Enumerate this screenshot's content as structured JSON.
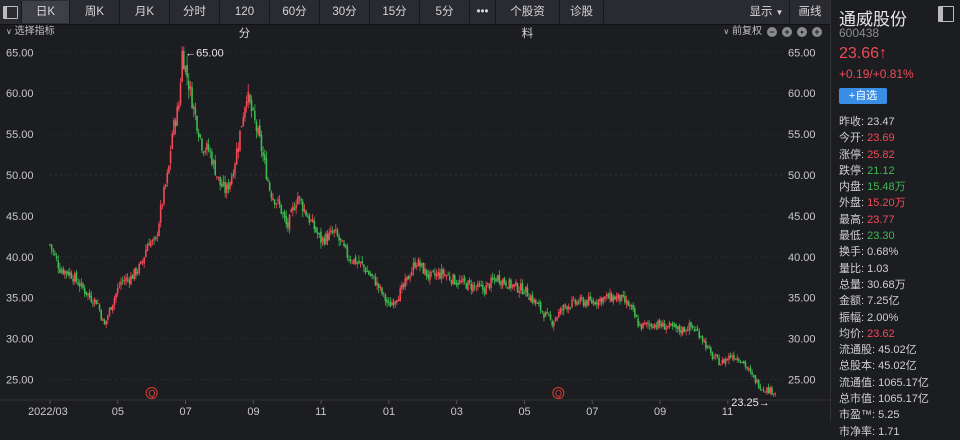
{
  "toolbar": {
    "tabs": [
      "日K",
      "周K",
      "月K",
      "分时",
      "120分",
      "60分",
      "30分",
      "15分",
      "5分"
    ],
    "active_tab": 0,
    "more_label": "•••",
    "profile_label": "个股资料",
    "diagnose_label": "诊股",
    "display_label": "显示",
    "draw_label": "画线"
  },
  "subbar": {
    "indicator_label": "选择指标",
    "adjust_label": "前复权"
  },
  "colors": {
    "up": "#f24957",
    "down": "#3fb950",
    "accent": "#3a8ee6",
    "background": "#1c1d21"
  },
  "stock": {
    "name": "通威股份",
    "code": "600438",
    "price": "23.66↑",
    "change": "+0.19/+0.81%",
    "add_watch_label": "+自选"
  },
  "quote_rows": [
    {
      "k": "昨收:",
      "v": "23.47",
      "c": "white"
    },
    {
      "k": "今开:",
      "v": "23.69",
      "c": "red"
    },
    {
      "k": "涨停:",
      "v": "25.82",
      "c": "red"
    },
    {
      "k": "跌停:",
      "v": "21.12",
      "c": "green"
    },
    {
      "k": "内盘:",
      "v": "15.48万",
      "c": "green"
    },
    {
      "k": "外盘:",
      "v": "15.20万",
      "c": "red"
    },
    {
      "k": "最高:",
      "v": "23.77",
      "c": "red"
    },
    {
      "k": "最低:",
      "v": "23.30",
      "c": "green"
    },
    {
      "k": "换手:",
      "v": "0.68%",
      "c": "white"
    },
    {
      "k": "量比:",
      "v": "1.03",
      "c": "white"
    },
    {
      "k": "总量:",
      "v": "30.68万",
      "c": "white"
    },
    {
      "k": "金额:",
      "v": "7.25亿",
      "c": "white"
    },
    {
      "k": "振幅:",
      "v": "2.00%",
      "c": "white"
    },
    {
      "k": "均价:",
      "v": "23.62",
      "c": "red"
    },
    {
      "k": "流通股:",
      "v": "45.02亿",
      "c": "white"
    },
    {
      "k": "总股本:",
      "v": "45.02亿",
      "c": "white"
    },
    {
      "k": "流通值:",
      "v": "1065.17亿",
      "c": "white"
    },
    {
      "k": "总市值:",
      "v": "1065.17亿",
      "c": "white"
    },
    {
      "k": "市盈™:",
      "v": "5.25",
      "c": "white"
    },
    {
      "k": "市净率:",
      "v": "1.71",
      "c": "white"
    }
  ],
  "chart_data": {
    "type": "candlestick",
    "y_ticks": [
      "65.00",
      "60.00",
      "55.00",
      "50.00",
      "45.00",
      "40.00",
      "35.00",
      "30.00",
      "25.00"
    ],
    "y_tick_values": [
      65,
      60,
      55,
      50,
      45,
      40,
      35,
      30,
      25
    ],
    "ylim": [
      22.5,
      66.5
    ],
    "x_labels": [
      "2022/03",
      "05",
      "07",
      "09",
      "11",
      "01",
      "03",
      "05",
      "07",
      "09",
      "11"
    ],
    "x_label_months": [
      0,
      2,
      4,
      6,
      8,
      10,
      12,
      14,
      16,
      18,
      20
    ],
    "month_span": 21.6,
    "annotations": {
      "high": "←65.00",
      "low": "23.25→",
      "high_value": 65.0,
      "high_month": 3.9,
      "low_value": 23.25,
      "low_month": 21.4
    },
    "event_marker": "Q",
    "event_months": [
      3.0,
      15.0
    ],
    "close_path": [
      [
        0,
        41.5
      ],
      [
        0.3,
        38.5
      ],
      [
        0.6,
        38.0
      ],
      [
        0.9,
        36.5
      ],
      [
        1.2,
        35.0
      ],
      [
        1.4,
        34.5
      ],
      [
        1.6,
        31.5
      ],
      [
        1.8,
        34.0
      ],
      [
        2.1,
        37.0
      ],
      [
        2.4,
        37.5
      ],
      [
        2.7,
        39.0
      ],
      [
        2.9,
        42.0
      ],
      [
        3.1,
        41.5
      ],
      [
        3.3,
        46.5
      ],
      [
        3.5,
        50.5
      ],
      [
        3.6,
        55.0
      ],
      [
        3.8,
        58.5
      ],
      [
        3.9,
        65.0
      ],
      [
        4.1,
        61.0
      ],
      [
        4.3,
        57.0
      ],
      [
        4.5,
        53.5
      ],
      [
        4.7,
        53.0
      ],
      [
        5.0,
        49.0
      ],
      [
        5.2,
        48.0
      ],
      [
        5.4,
        50.5
      ],
      [
        5.6,
        55.0
      ],
      [
        5.8,
        60.0
      ],
      [
        6.0,
        57.0
      ],
      [
        6.2,
        54.0
      ],
      [
        6.5,
        48.0
      ],
      [
        6.8,
        46.0
      ],
      [
        7.0,
        43.5
      ],
      [
        7.3,
        47.5
      ],
      [
        7.6,
        45.0
      ],
      [
        8.0,
        42.0
      ],
      [
        8.4,
        43.0
      ],
      [
        8.8,
        40.0
      ],
      [
        9.2,
        39.0
      ],
      [
        9.6,
        37.0
      ],
      [
        10.0,
        34.0
      ],
      [
        10.4,
        36.0
      ],
      [
        10.8,
        39.5
      ],
      [
        11.2,
        37.5
      ],
      [
        11.6,
        38.0
      ],
      [
        12.0,
        37.0
      ],
      [
        12.4,
        36.5
      ],
      [
        12.8,
        36.0
      ],
      [
        13.2,
        37.5
      ],
      [
        13.6,
        36.5
      ],
      [
        14.0,
        36.0
      ],
      [
        14.4,
        34.0
      ],
      [
        14.8,
        32.0
      ],
      [
        15.2,
        34.0
      ],
      [
        15.6,
        34.5
      ],
      [
        16.0,
        34.5
      ],
      [
        16.4,
        35.0
      ],
      [
        16.8,
        35.0
      ],
      [
        17.1,
        34.0
      ],
      [
        17.4,
        31.5
      ],
      [
        17.8,
        31.8
      ],
      [
        18.2,
        31.5
      ],
      [
        18.6,
        31.0
      ],
      [
        18.9,
        31.5
      ],
      [
        19.2,
        30.5
      ],
      [
        19.5,
        28.0
      ],
      [
        19.8,
        27.0
      ],
      [
        20.1,
        28.0
      ],
      [
        20.4,
        27.5
      ],
      [
        20.7,
        25.5
      ],
      [
        21.0,
        24.0
      ],
      [
        21.4,
        23.5
      ]
    ]
  }
}
